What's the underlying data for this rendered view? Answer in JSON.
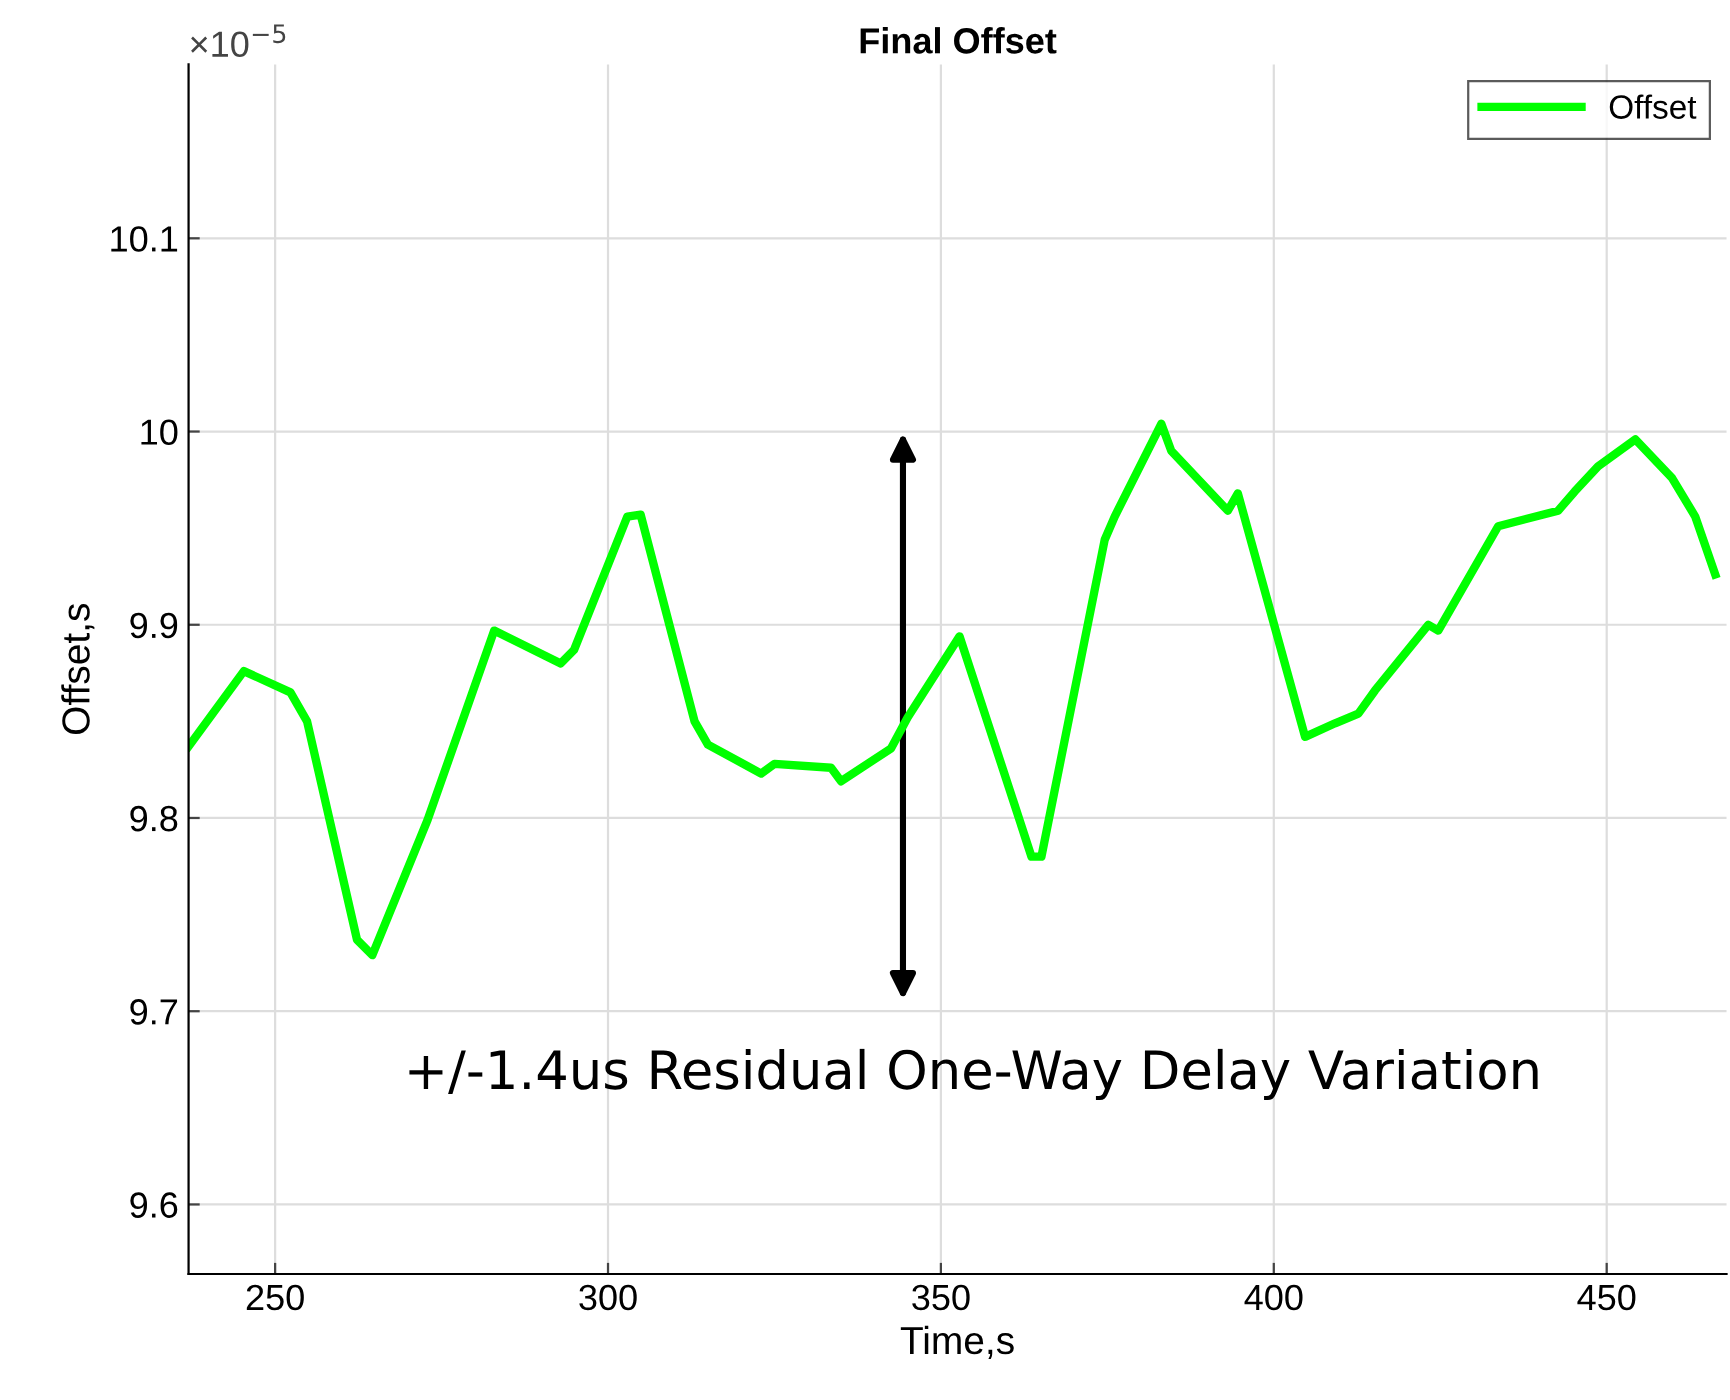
{
  "chart_data": {
    "type": "line",
    "title": "Final Offset",
    "xlabel": "Time,s",
    "ylabel": "Offset,s",
    "annotations": [
      "×10$^{−5}$",
      "+/-1.4us Residual One-Way Delay Variation"
    ],
    "x": [
      237,
      245.3,
      252.3,
      254.8,
      262.3,
      264.6,
      272.9,
      282.9,
      292.9,
      294.9,
      302.9,
      304.9,
      313,
      315,
      323,
      325,
      333.5,
      335,
      342.5,
      345,
      352.8,
      363.6,
      365.1,
      374.6,
      376.1,
      383.1,
      384.6,
      393.1,
      394.6,
      404.7,
      409.2,
      412.7,
      415.2,
      423.2,
      424.7,
      433.7,
      442.7,
      445.2,
      448.7,
      454.3,
      459.8,
      463.3,
      466.3
    ],
    "series": [
      {
        "name": "Offset",
        "color": "#00ff00",
        "values": [
          9.837,
          9.876,
          9.865,
          9.85,
          9.737,
          9.729,
          9.799,
          9.897,
          9.88,
          9.887,
          9.956,
          9.957,
          9.85,
          9.838,
          9.823,
          9.828,
          9.826,
          9.819,
          9.836,
          9.852,
          9.894,
          9.78,
          9.78,
          9.944,
          9.956,
          10.004,
          9.99,
          9.959,
          9.968,
          9.842,
          9.849,
          9.854,
          9.866,
          9.9,
          9.897,
          9.951,
          9.959,
          9.969,
          9.982,
          9.996,
          9.976,
          9.956,
          9.926
        ]
      }
    ],
    "xlim": [
      237,
      468
    ],
    "xticks": [
      250,
      300,
      350,
      400,
      450
    ],
    "ylim": [
      9.564,
      10.19
    ],
    "yticks": [
      9.6,
      9.7,
      9.8,
      9.9,
      10,
      10.1
    ],
    "grid": true,
    "legend": "top right",
    "marker": "none",
    "line_style": "solid"
  }
}
